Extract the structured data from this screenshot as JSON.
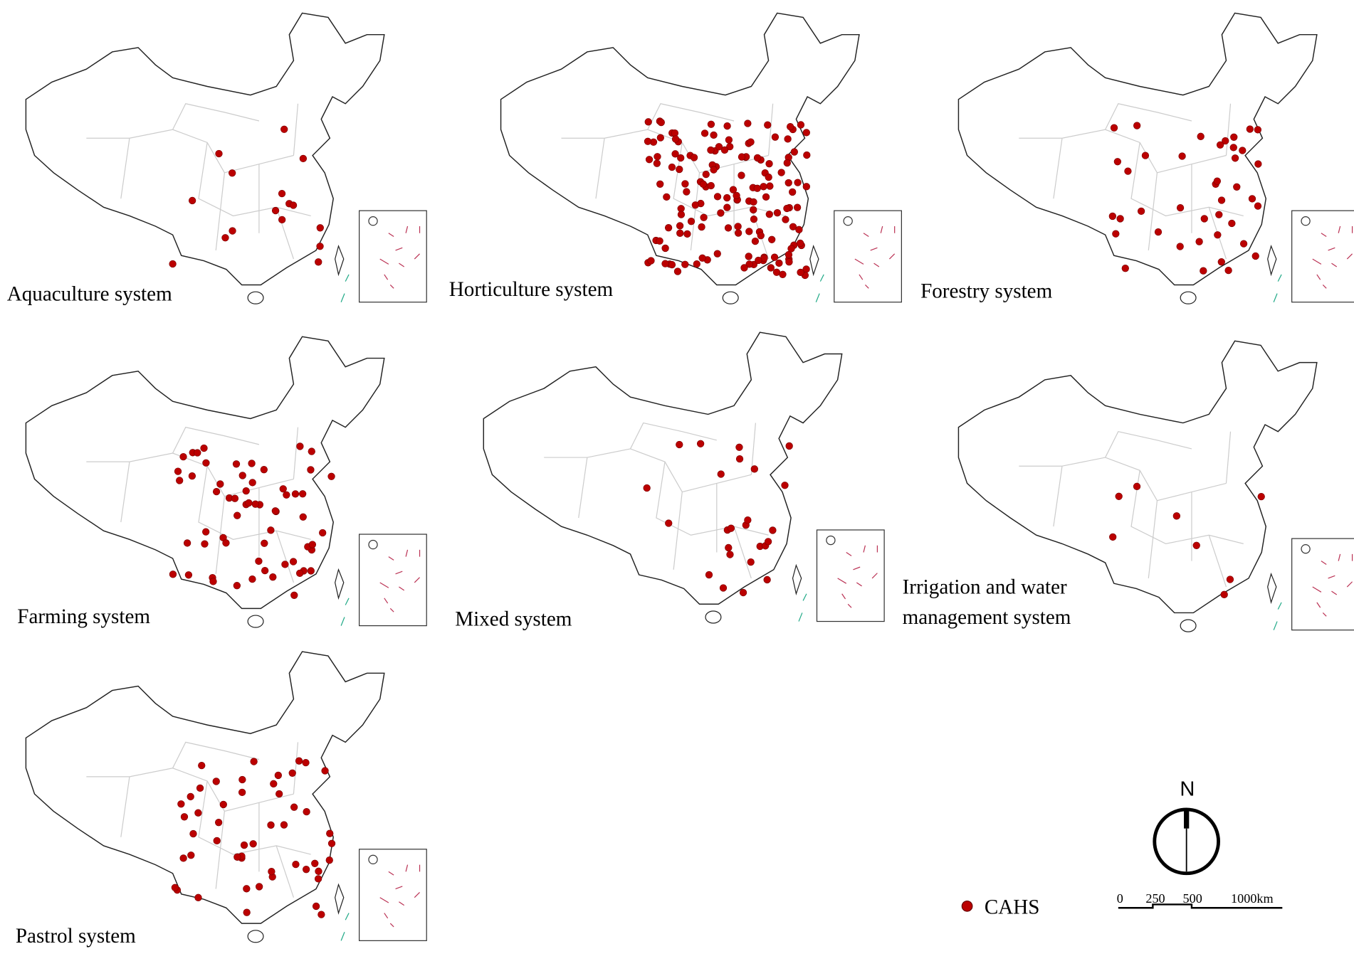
{
  "panels": [
    {
      "label_lines": [
        "Aquaculture system"
      ]
    },
    {
      "label_lines": [
        "Horticulture system"
      ]
    },
    {
      "label_lines": [
        "Forestry system"
      ]
    },
    {
      "label_lines": [
        "Farming system"
      ]
    },
    {
      "label_lines": [
        "Mixed system"
      ]
    },
    {
      "label_lines": [
        "Irrigation and water",
        "management system"
      ]
    },
    {
      "label_lines": [
        "Pastrol system"
      ]
    }
  ],
  "legend": {
    "label": "CAHS"
  },
  "north_arrow": {
    "label": "N"
  },
  "scale_bar": {
    "labels": [
      "0",
      "250",
      "500",
      "1000km"
    ]
  }
}
